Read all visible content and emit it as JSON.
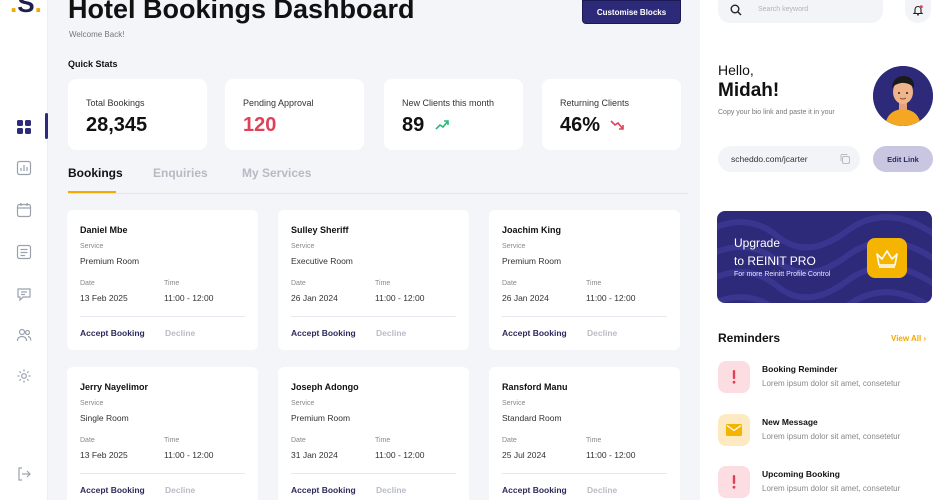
{
  "app": {
    "logo_text": "S",
    "logo_dot": "."
  },
  "header": {
    "title": "Hotel Bookings Dashboard",
    "welcome": "Welcome Back!",
    "customise_label": "Customise Blocks"
  },
  "quick_stats": {
    "label": "Quick Stats",
    "cards": [
      {
        "label": "Total Bookings",
        "value": "28,345",
        "trend": null
      },
      {
        "label": "Pending Approval",
        "value": "120",
        "trend": null,
        "color": "#e0405a"
      },
      {
        "label": "New Clients this month",
        "value": "89",
        "trend": "up",
        "trend_color": "#2bb673"
      },
      {
        "label": "Returning Clients",
        "value": "46%",
        "trend": "down",
        "trend_color": "#e0405a"
      }
    ]
  },
  "tabs": [
    {
      "label": "Bookings",
      "active": true
    },
    {
      "label": "Enquiries",
      "active": false
    },
    {
      "label": "My Services",
      "active": false
    }
  ],
  "booking_fields": {
    "service_label": "Service",
    "date_label": "Date",
    "time_label": "Time",
    "accept_label": "Accept Booking",
    "decline_label": "Decline"
  },
  "bookings": [
    {
      "name": "Daniel Mbe",
      "service": "Premium Room",
      "date": "13 Feb 2025",
      "time": "11:00 - 12:00"
    },
    {
      "name": "Sulley Sheriff",
      "service": "Executive Room",
      "date": "26 Jan 2024",
      "time": "11:00 - 12:00"
    },
    {
      "name": "Joachim King",
      "service": "Premium Room",
      "date": "26 Jan 2024",
      "time": "11:00 - 12:00"
    },
    {
      "name": "Jerry Nayelimor",
      "service": "Single Room",
      "date": "13 Feb 2025",
      "time": "11:00 - 12:00"
    },
    {
      "name": "Joseph Adongo",
      "service": "Premium Room",
      "date": "31 Jan 2024",
      "time": "11:00 - 12:00"
    },
    {
      "name": "Ransford Manu",
      "service": "Standard Room",
      "date": "25 Jul 2024",
      "time": "11:00 - 12:00"
    }
  ],
  "sidebar": {
    "icons": [
      "dashboard-icon",
      "chart-icon",
      "calendar-icon",
      "list-icon",
      "chat-icon",
      "users-icon",
      "settings-icon",
      "logout-icon"
    ],
    "active": "dashboard-icon"
  },
  "right_panel": {
    "search_placeholder": "Search keyword",
    "greeting": "Hello,",
    "user_name": "Midah!",
    "bio_hint": "Copy your bio link and paste it in your",
    "link_value": "scheddo.com/jcarter",
    "edit_link_label": "Edit Link",
    "upgrade": {
      "line1": "Upgrade",
      "line2": "to REINIT PRO",
      "line3": "For more Reinitt Profile Control"
    },
    "reminders_title": "Reminders",
    "view_all_label": "View All",
    "reminders": [
      {
        "title": "Booking Reminder",
        "desc": "Lorem ipsum dolor sit amet, consetetur",
        "icon": "alert-icon"
      },
      {
        "title": "New Message",
        "desc": "Lorem ipsum dolor sit amet, consetetur",
        "icon": "mail-icon"
      },
      {
        "title": "Upcoming Booking",
        "desc": "Lorem ipsum dolor sit amet, consetetur",
        "icon": "alert-icon"
      }
    ]
  },
  "colors": {
    "brand": "#2d2a7a",
    "accent": "#f2a900",
    "danger": "#e0405a",
    "success": "#2bb673"
  }
}
